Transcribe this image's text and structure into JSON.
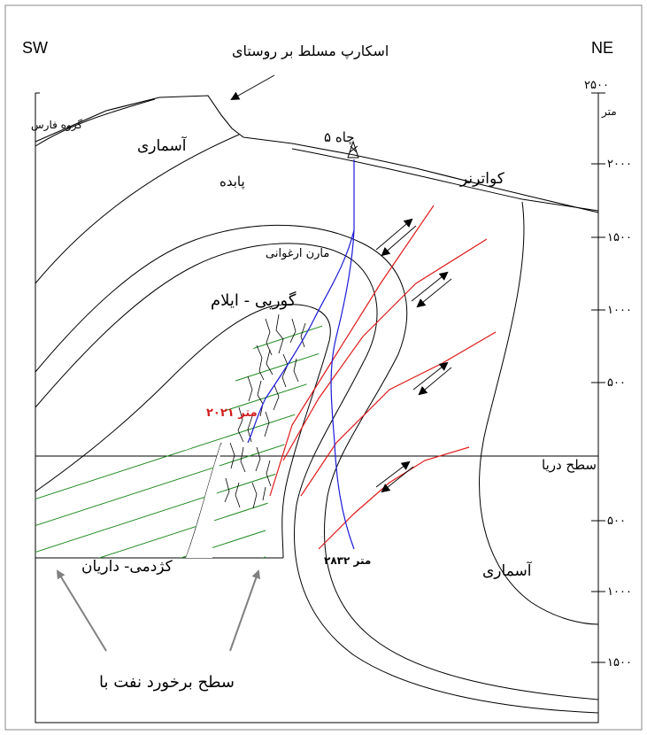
{
  "orientation": {
    "left": "SW",
    "right": "NE"
  },
  "annotations": {
    "scarp": "اسکارپ مسلط بر روستای",
    "well": "چاه ۵",
    "oil_contact": "سطح برخورد نفت با",
    "sea_level": "سطح دریا",
    "depth_red": "۲۰۲۱ متر",
    "depth_black": "۲۸۳۲ متر"
  },
  "formations": {
    "fars": "گروه فارس",
    "asmari_top": "آسماری",
    "pabdeh": "پابده",
    "quaternary": "کواترنر",
    "purple_marl": "مارن ارغوانی",
    "gurpi_ilam": "گورپی - ایلام",
    "kazhdumi_dariyan": "کژدمی- داریان",
    "asmari_right": "آسماری"
  },
  "scale": {
    "unit": "متر",
    "ticks": [
      "۲۵۰۰",
      "۲۰۰۰",
      "۱۵۰۰",
      "۱۰۰۰",
      "۵۰۰",
      "۵۰۰",
      "۱۰۰۰",
      "۱۵۰۰"
    ]
  },
  "colors": {
    "fault": "#e01a1a",
    "well_path": "#1a1ad8",
    "hatch": "#1e8a1e",
    "line": "#000000",
    "arrow_gray": "#808080"
  }
}
